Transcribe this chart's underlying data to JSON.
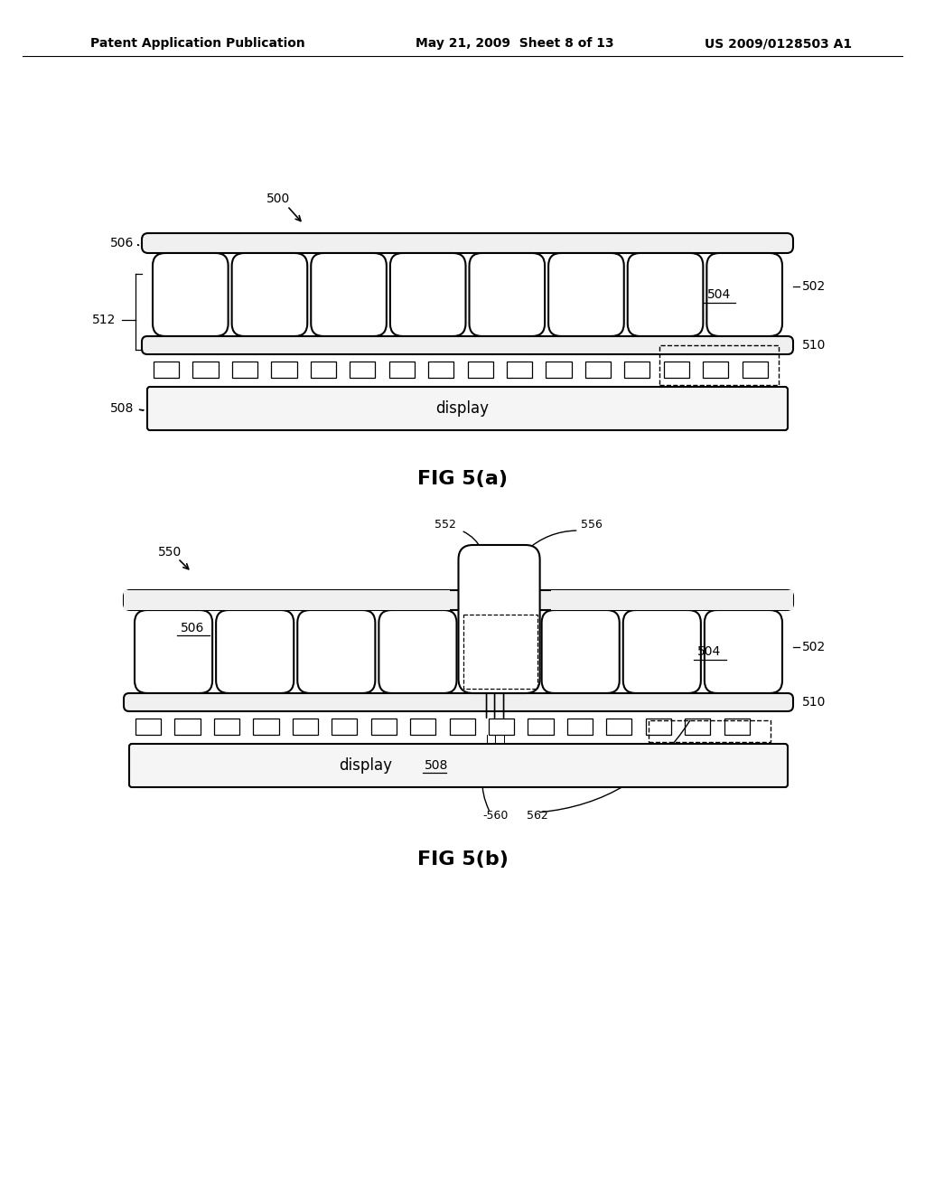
{
  "bg_color": "#ffffff",
  "header_left": "Patent Application Publication",
  "header_mid": "May 21, 2009  Sheet 8 of 13",
  "header_right": "US 2009/0128503 A1",
  "fig_a_title": "FIG 5(a)",
  "fig_b_title": "FIG 5(b)"
}
